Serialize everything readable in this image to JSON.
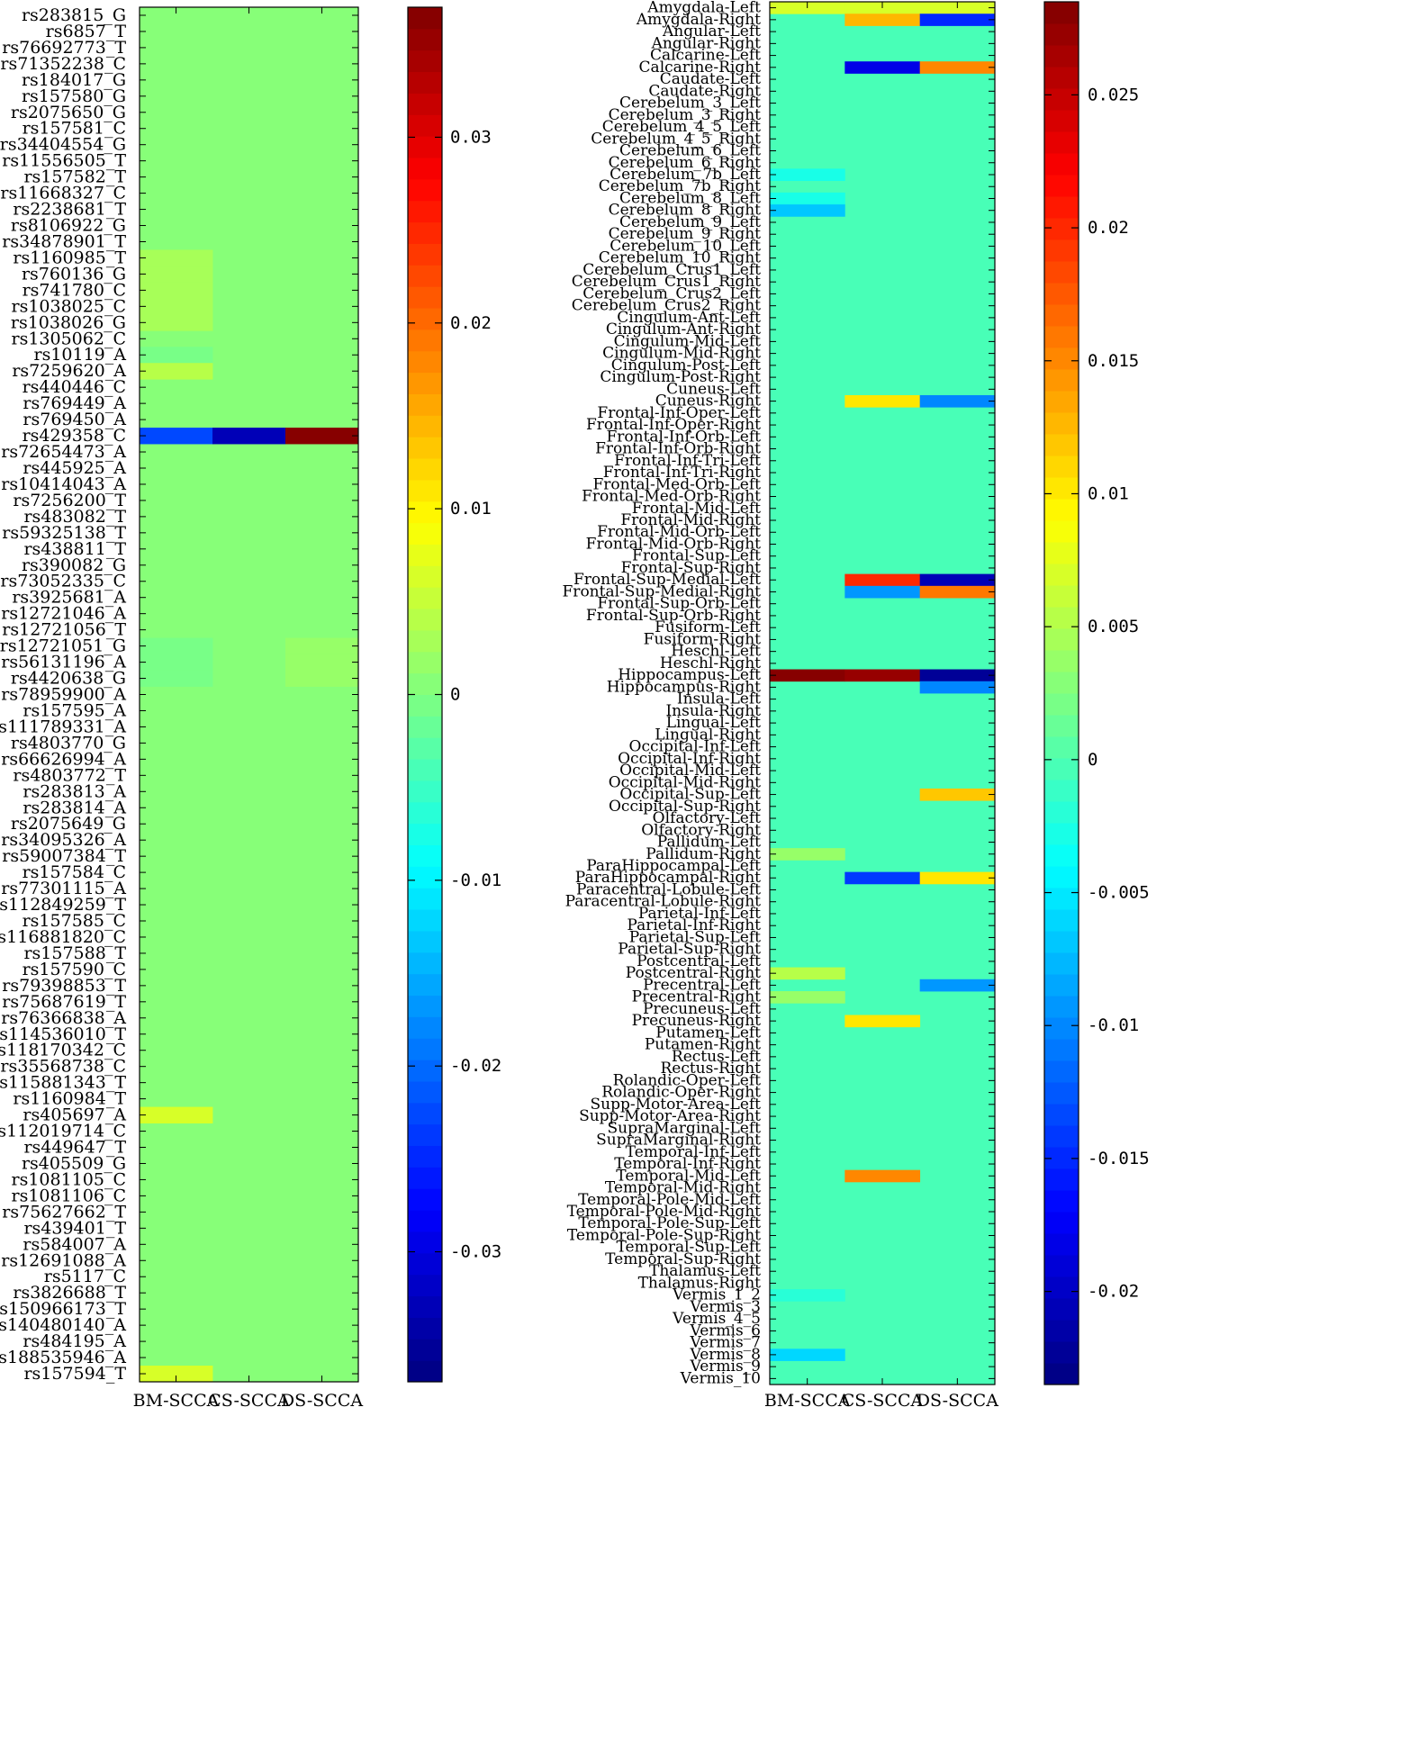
{
  "chart_data": [
    {
      "type": "heatmap",
      "title": "",
      "columns": [
        "BM-SCCA",
        "CS-SCCA",
        "DS-SCCA"
      ],
      "rows": [
        "rs283815_G",
        "rs6857_T",
        "rs76692773_T",
        "rs71352238_C",
        "rs184017_G",
        "rs157580_G",
        "rs2075650_G",
        "rs157581_C",
        "rs34404554_G",
        "rs11556505_T",
        "rs157582_T",
        "rs11668327_C",
        "rs2238681_T",
        "rs8106922_G",
        "rs34878901_T",
        "rs1160985_T",
        "rs760136_G",
        "rs741780_C",
        "rs1038025_C",
        "rs1038026_G",
        "rs1305062_C",
        "rs10119_A",
        "rs7259620_A",
        "rs440446_C",
        "rs769449_A",
        "rs769450_A",
        "rs429358_C",
        "rs72654473_A",
        "rs445925_A",
        "rs10414043_A",
        "rs7256200_T",
        "rs483082_T",
        "rs59325138_T",
        "rs438811_T",
        "rs390082_G",
        "rs73052335_C",
        "rs3925681_A",
        "rs12721046_A",
        "rs12721056_T",
        "rs12721051_G",
        "rs56131196_A",
        "rs4420638_G",
        "rs78959900_A",
        "rs157595_A",
        "rs111789331_A",
        "rs4803770_G",
        "rs66626994_A",
        "rs4803772_T",
        "rs283813_A",
        "rs283814_A",
        "rs2075649_G",
        "rs34095326_A",
        "rs59007384_T",
        "rs157584_C",
        "rs77301115_A",
        "rs112849259_T",
        "rs157585_C",
        "rs116881820_C",
        "rs157588_T",
        "rs157590_C",
        "rs79398853_T",
        "rs75687619_T",
        "rs76366838_A",
        "rs114536010_T",
        "rs118170342_C",
        "rs35568738_C",
        "rs115881343_T",
        "rs1160984_T",
        "rs405697_A",
        "rs112019714_C",
        "rs449647_T",
        "rs405509_G",
        "rs1081105_C",
        "rs1081106_C",
        "rs75627662_T",
        "rs439401_T",
        "rs584007_A",
        "rs12691088_A",
        "rs5117_C",
        "rs3826688_T",
        "rs150966173_T",
        "rs140480140_A",
        "rs484195_A",
        "rs188535946_A",
        "rs157594_T"
      ],
      "nonzero_cells": [
        {
          "row": "rs1160985_T",
          "col": "BM-SCCA",
          "value": 0.003
        },
        {
          "row": "rs760136_G",
          "col": "BM-SCCA",
          "value": 0.003
        },
        {
          "row": "rs741780_C",
          "col": "BM-SCCA",
          "value": 0.003
        },
        {
          "row": "rs1038025_C",
          "col": "BM-SCCA",
          "value": 0.003
        },
        {
          "row": "rs1038026_G",
          "col": "BM-SCCA",
          "value": 0.003
        },
        {
          "row": "rs10119_A",
          "col": "BM-SCCA",
          "value": -0.001
        },
        {
          "row": "rs7259620_A",
          "col": "BM-SCCA",
          "value": 0.004
        },
        {
          "row": "rs429358_C",
          "col": "BM-SCCA",
          "value": -0.022
        },
        {
          "row": "rs429358_C",
          "col": "CS-SCCA",
          "value": -0.033
        },
        {
          "row": "rs429358_C",
          "col": "DS-SCCA",
          "value": 0.036
        },
        {
          "row": "rs12721051_G",
          "col": "BM-SCCA",
          "value": -0.001
        },
        {
          "row": "rs56131196_A",
          "col": "BM-SCCA",
          "value": -0.001
        },
        {
          "row": "rs4420638_G",
          "col": "BM-SCCA",
          "value": -0.001
        },
        {
          "row": "rs12721051_G",
          "col": "DS-SCCA",
          "value": 0.002
        },
        {
          "row": "rs56131196_A",
          "col": "DS-SCCA",
          "value": 0.002
        },
        {
          "row": "rs4420638_G",
          "col": "DS-SCCA",
          "value": 0.002
        },
        {
          "row": "rs405697_A",
          "col": "BM-SCCA",
          "value": 0.006
        },
        {
          "row": "rs157594_T",
          "col": "BM-SCCA",
          "value": 0.006
        }
      ],
      "colorbar": {
        "min": -0.037,
        "max": 0.037,
        "ticks": [
          -0.03,
          -0.02,
          -0.01,
          0,
          0.01,
          0.02,
          0.03
        ],
        "tick_labels": [
          "-0.03",
          "-0.02",
          "-0.01",
          "0",
          "0.01",
          "0.02",
          "0.03"
        ],
        "colormap": "jet"
      }
    },
    {
      "type": "heatmap",
      "title": "",
      "columns": [
        "BM-SCCA",
        "CS-SCCA",
        "DS-SCCA"
      ],
      "rows": [
        "Amygdala-Left",
        "Amygdala-Right",
        "Angular-Left",
        "Angular-Right",
        "Calcarine-Left",
        "Calcarine-Right",
        "Caudate-Left",
        "Caudate-Right",
        "Cerebelum_3_Left",
        "Cerebelum_3_Right",
        "Cerebelum_4_5_Left",
        "Cerebelum_4_5_Right",
        "Cerebelum_6_Left",
        "Cerebelum_6_Right",
        "Cerebelum_7b_Left",
        "Cerebelum_7b_Right",
        "Cerebelum_8_Left",
        "Cerebelum_8_Right",
        "Cerebelum_9_Left",
        "Cerebelum_9_Right",
        "Cerebelum_10_Left",
        "Cerebelum_10_Right",
        "Cerebelum_Crus1_Left",
        "Cerebelum_Crus1_Right",
        "Cerebelum_Crus2_Left",
        "Cerebelum_Crus2_Right",
        "Cingulum-Ant-Left",
        "Cingulum-Ant-Right",
        "Cingulum-Mid-Left",
        "Cingulum-Mid-Right",
        "Cingulum-Post-Left",
        "Cingulum-Post-Right",
        "Cuneus-Left",
        "Cuneus-Right",
        "Frontal-Inf-Oper-Left",
        "Frontal-Inf-Oper-Right",
        "Frontal-Inf-Orb-Left",
        "Frontal-Inf-Orb-Right",
        "Frontal-Inf-Tri-Left",
        "Frontal-Inf-Tri-Right",
        "Frontal-Med-Orb-Left",
        "Frontal-Med-Orb-Right",
        "Frontal-Mid-Left",
        "Frontal-Mid-Right",
        "Frontal-Mid-Orb-Left",
        "Frontal-Mid-Orb-Right",
        "Frontal-Sup-Left",
        "Frontal-Sup-Right",
        "Frontal-Sup-Medial-Left",
        "Frontal-Sup-Medial-Right",
        "Frontal-Sup-Orb-Left",
        "Frontal-Sup-Orb-Right",
        "Fusiform-Left",
        "Fusiform-Right",
        "Heschl-Left",
        "Heschl-Right",
        "Hippocampus-Left",
        "Hippocampus-Right",
        "Insula-Left",
        "Insula-Right",
        "Lingual-Left",
        "Lingual-Right",
        "Occipital-Inf-Left",
        "Occipital-Inf-Right",
        "Occipital-Mid-Left",
        "Occipital-Mid-Right",
        "Occipital-Sup-Left",
        "Occipital-Sup-Right",
        "Olfactory-Left",
        "Olfactory-Right",
        "Pallidum-Left",
        "Pallidum-Right",
        "ParaHippocampal-Left",
        "ParaHippocampal-Right",
        "Paracentral-Lobule-Left",
        "Paracentral-Lobule-Right",
        "Parietal-Inf-Left",
        "Parietal-Inf-Right",
        "Parietal-Sup-Left",
        "Parietal-Sup-Right",
        "Postcentral-Left",
        "Postcentral-Right",
        "Precentral-Left",
        "Precentral-Right",
        "Precuneus-Left",
        "Precuneus-Right",
        "Putamen-Left",
        "Putamen-Right",
        "Rectus-Left",
        "Rectus-Right",
        "Rolandic-Oper-Left",
        "Rolandic-Oper-Right",
        "Supp-Motor-Area-Left",
        "Supp-Motor-Area-Right",
        "SupraMarginal-Left",
        "SupraMarginal-Right",
        "Temporal-Inf-Left",
        "Temporal-Inf-Right",
        "Temporal-Mid-Left",
        "Temporal-Mid-Right",
        "Temporal-Pole-Mid-Left",
        "Temporal-Pole-Mid-Right",
        "Temporal-Pole-Sup-Left",
        "Temporal-Pole-Sup-Right",
        "Temporal-Sup-Left",
        "Temporal-Sup-Right",
        "Thalamus-Left",
        "Thalamus-Right",
        "Vermis_1_2",
        "Vermis_3",
        "Vermis_4_5",
        "Vermis_6",
        "Vermis_7",
        "Vermis_8",
        "Vermis_9",
        "Vermis_10"
      ],
      "nonzero_cells": [
        {
          "row": "Amygdala-Left",
          "col": "BM-SCCA",
          "value": 0.007
        },
        {
          "row": "Amygdala-Left",
          "col": "CS-SCCA",
          "value": 0.007
        },
        {
          "row": "Amygdala-Left",
          "col": "DS-SCCA",
          "value": 0.007
        },
        {
          "row": "Amygdala-Right",
          "col": "CS-SCCA",
          "value": 0.013
        },
        {
          "row": "Amygdala-Right",
          "col": "DS-SCCA",
          "value": -0.015
        },
        {
          "row": "Calcarine-Right",
          "col": "CS-SCCA",
          "value": -0.018
        },
        {
          "row": "Calcarine-Right",
          "col": "DS-SCCA",
          "value": 0.015
        },
        {
          "row": "Cerebelum_7b_Left",
          "col": "BM-SCCA",
          "value": -0.003
        },
        {
          "row": "Cerebelum_8_Left",
          "col": "BM-SCCA",
          "value": -0.003
        },
        {
          "row": "Cerebelum_8_Right",
          "col": "BM-SCCA",
          "value": -0.007
        },
        {
          "row": "Cuneus-Right",
          "col": "CS-SCCA",
          "value": 0.01
        },
        {
          "row": "Cuneus-Right",
          "col": "DS-SCCA",
          "value": -0.01
        },
        {
          "row": "Frontal-Sup-Medial-Left",
          "col": "CS-SCCA",
          "value": 0.02
        },
        {
          "row": "Frontal-Sup-Medial-Left",
          "col": "DS-SCCA",
          "value": -0.021
        },
        {
          "row": "Frontal-Sup-Medial-Right",
          "col": "CS-SCCA",
          "value": -0.009
        },
        {
          "row": "Frontal-Sup-Medial-Right",
          "col": "DS-SCCA",
          "value": 0.016
        },
        {
          "row": "Hippocampus-Left",
          "col": "BM-SCCA",
          "value": 0.028
        },
        {
          "row": "Hippocampus-Left",
          "col": "CS-SCCA",
          "value": 0.027
        },
        {
          "row": "Hippocampus-Left",
          "col": "DS-SCCA",
          "value": -0.022
        },
        {
          "row": "Hippocampus-Right",
          "col": "DS-SCCA",
          "value": -0.01
        },
        {
          "row": "Occipital-Sup-Left",
          "col": "DS-SCCA",
          "value": 0.012
        },
        {
          "row": "Pallidum-Right",
          "col": "BM-SCCA",
          "value": 0.004
        },
        {
          "row": "ParaHippocampal-Right",
          "col": "CS-SCCA",
          "value": -0.014
        },
        {
          "row": "ParaHippocampal-Right",
          "col": "DS-SCCA",
          "value": 0.01
        },
        {
          "row": "Postcentral-Right",
          "col": "BM-SCCA",
          "value": 0.005
        },
        {
          "row": "Precentral-Left",
          "col": "DS-SCCA",
          "value": -0.009
        },
        {
          "row": "Precentral-Right",
          "col": "BM-SCCA",
          "value": 0.004
        },
        {
          "row": "Precuneus-Right",
          "col": "CS-SCCA",
          "value": 0.01
        },
        {
          "row": "Temporal-Mid-Left",
          "col": "CS-SCCA",
          "value": 0.015
        },
        {
          "row": "Vermis_1_2",
          "col": "BM-SCCA",
          "value": -0.002
        },
        {
          "row": "Vermis_8",
          "col": "BM-SCCA",
          "value": -0.006
        }
      ],
      "colorbar": {
        "min": -0.0235,
        "max": 0.0285,
        "ticks": [
          -0.02,
          -0.015,
          -0.01,
          -0.005,
          0,
          0.005,
          0.01,
          0.015,
          0.02,
          0.025
        ],
        "tick_labels": [
          "-0.02",
          "-0.015",
          "-0.01",
          "-0.005",
          "0",
          "0.005",
          "0.01",
          "0.015",
          "0.02",
          "0.025"
        ],
        "colormap": "jet"
      }
    }
  ]
}
